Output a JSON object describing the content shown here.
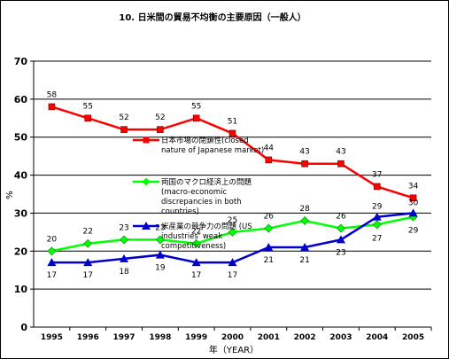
{
  "chart_data": {
    "type": "line",
    "title": "10. 日米間の貿易不均衡の主要原因（一般人）",
    "xlabel": "年（YEAR）",
    "ylabel": "%",
    "ylim": [
      0,
      70
    ],
    "yticks": [
      0,
      10,
      20,
      30,
      40,
      50,
      60,
      70
    ],
    "categories": [
      "1995",
      "1996",
      "1997",
      "1998",
      "1999",
      "2000",
      "2001",
      "2002",
      "2003",
      "2004",
      "2005"
    ],
    "grid": true,
    "legend_position": "inside, center-right",
    "series": [
      {
        "name": "日本市場の閉鎖性(closed nature of Japanese market)",
        "legend_lines": [
          "日本市場の閉鎖性(closed",
          "nature of Japanese market)"
        ],
        "color": "#ff0000",
        "marker": "square",
        "values": [
          58,
          55,
          52,
          52,
          55,
          51,
          44,
          43,
          43,
          37,
          34
        ]
      },
      {
        "name": "両国のマクロ経済上の問題 (macro-economic discrepancies in both countries)",
        "legend_lines": [
          "両国のマクロ経済上の問題",
          "(macro-economic",
          "discrepancies in both",
          "countries)"
        ],
        "color": "#00ff00",
        "marker": "diamond",
        "values": [
          20,
          22,
          23,
          23,
          22,
          25,
          26,
          28,
          26,
          27,
          29
        ]
      },
      {
        "name": "米産業の競争力の問題 (US industries' weak competitiveness)",
        "legend_lines": [
          "米産業の競争力の問題 (US",
          "industries' weak",
          "competitiveness)"
        ],
        "color": "#0000cc",
        "marker": "triangle",
        "values": [
          17,
          17,
          18,
          19,
          17,
          17,
          21,
          21,
          23,
          29,
          30
        ]
      }
    ]
  }
}
